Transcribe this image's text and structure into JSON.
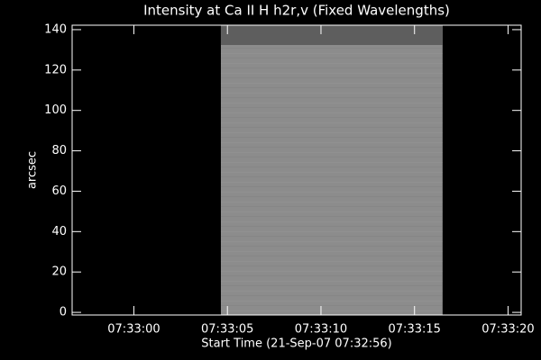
{
  "chart_data": {
    "type": "image",
    "title": "Intensity at Ca II H h2r,v (Fixed Wavelengths)",
    "x_label": "Start Time (21-Sep-07 07:32:56)",
    "y_label": "arcsec",
    "xlim": [
      0.7,
      24.7
    ],
    "xticks": [
      {
        "value": 4,
        "label": "07:33:00"
      },
      {
        "value": 9,
        "label": "07:33:05"
      },
      {
        "value": 14,
        "label": "07:33:10"
      },
      {
        "value": 19,
        "label": "07:33:15"
      },
      {
        "value": 24,
        "label": "07:33:20"
      }
    ],
    "ylim": [
      -1.3,
      142.2
    ],
    "yticks": [
      0,
      20,
      40,
      60,
      80,
      100,
      120,
      140
    ],
    "image": {
      "x": [
        8.65,
        20.5
      ],
      "y": [
        -1.3,
        142.2
      ],
      "color": "#8c8c8c"
    },
    "bands": [
      {
        "y": [
          132.4,
          142.2
        ],
        "color": "#5e5e5e"
      }
    ]
  }
}
